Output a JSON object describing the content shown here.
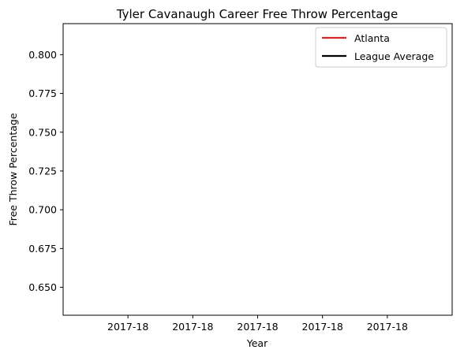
{
  "chart_data": {
    "type": "line",
    "title": "Tyler Cavanaugh Career Free Throw Percentage",
    "xlabel": "Year",
    "ylabel": "Free Throw Percentage",
    "x_ticks": [
      "2017-18",
      "2017-18",
      "2017-18",
      "2017-18",
      "2017-18"
    ],
    "y_ticks": [
      "0.650",
      "0.675",
      "0.700",
      "0.725",
      "0.750",
      "0.775",
      "0.800"
    ],
    "ylim": [
      0.632,
      0.82
    ],
    "grid": false,
    "legend_position": "top-right",
    "series": [
      {
        "name": "Atlanta",
        "color": "#d62728",
        "values": []
      },
      {
        "name": "League Average",
        "color": "#000000",
        "values": []
      }
    ]
  }
}
